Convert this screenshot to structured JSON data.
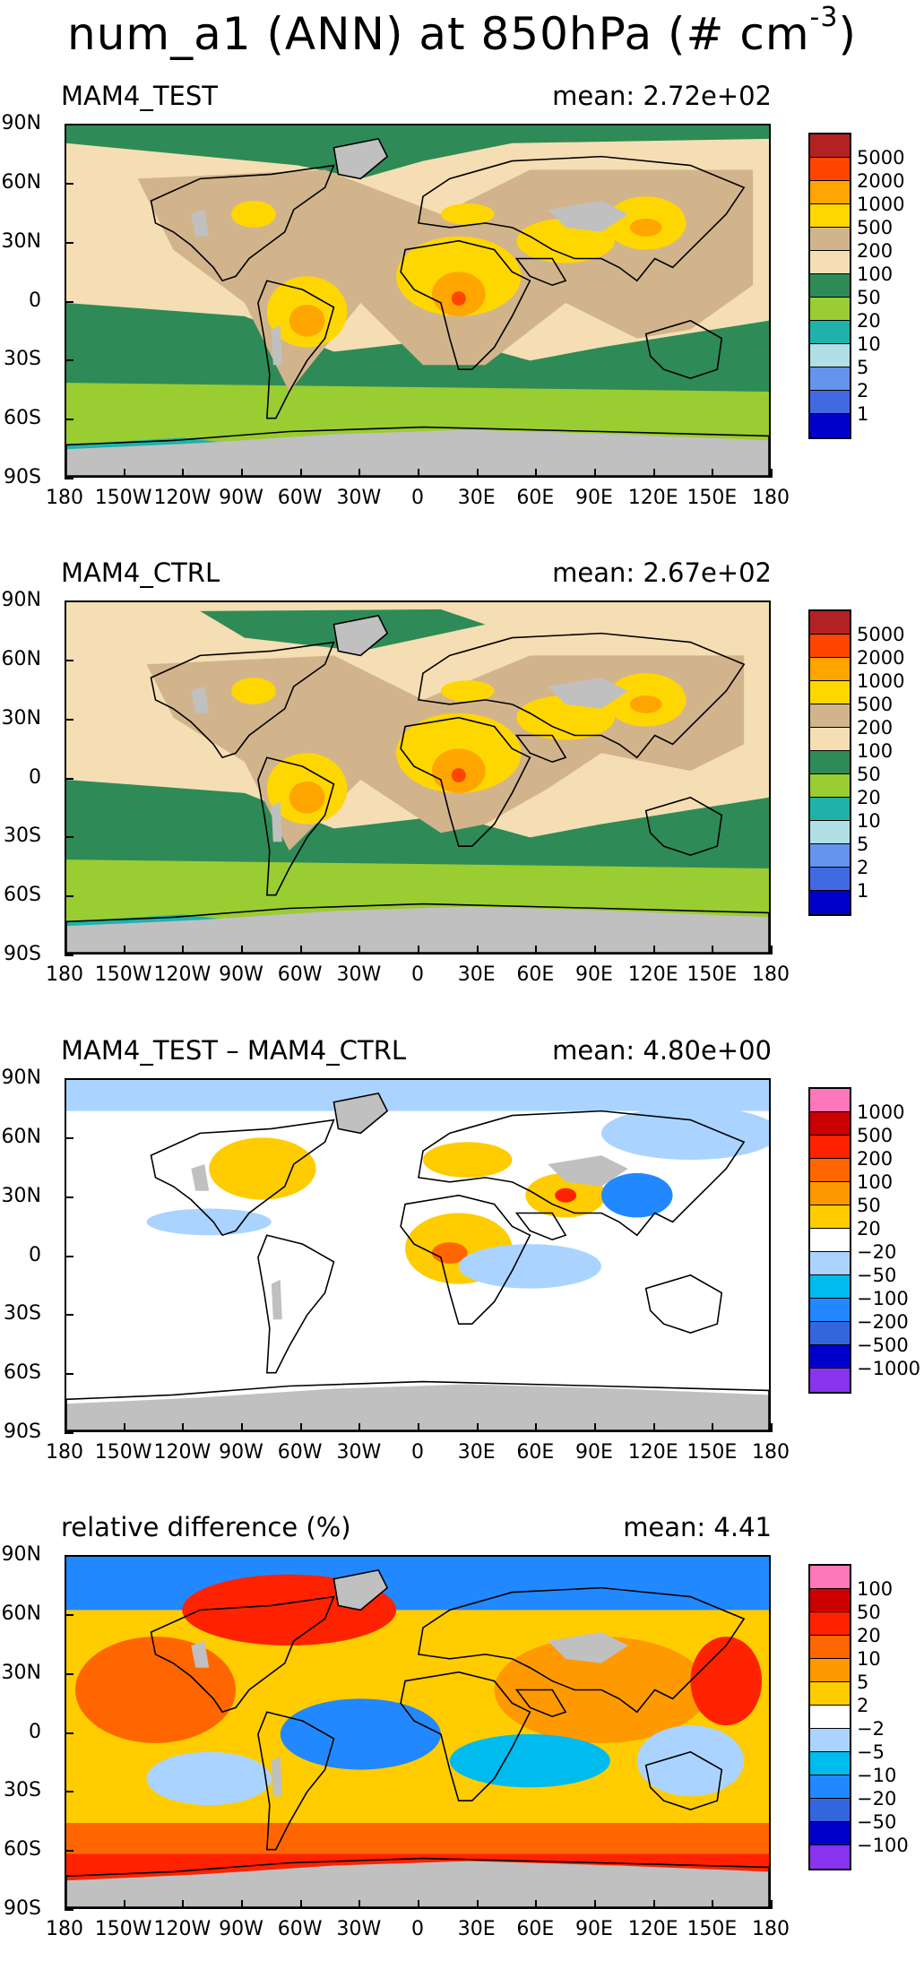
{
  "title": "num_a1 (ANN) at 850hPa (#  cm",
  "title_exponent": "-3",
  "lat_labels": [
    "90N",
    "60N",
    "30N",
    "0",
    "30S",
    "60S",
    "90S"
  ],
  "lon_labels": [
    "180",
    "150W",
    "120W",
    "90W",
    "60W",
    "30W",
    "0",
    "30E",
    "60E",
    "90E",
    "120E",
    "150E",
    "180"
  ],
  "panels": [
    {
      "name": "MAM4_TEST",
      "mean": "mean: 2.72e+02",
      "kind": "abs",
      "levels": [
        "5000",
        "2000",
        "1000",
        "500",
        "200",
        "100",
        "50",
        "20",
        "10",
        "5",
        "2",
        "1"
      ],
      "colors": [
        "#b22222",
        "#ff4500",
        "#ffa500",
        "#ffd700",
        "#d2b48c",
        "#f5deb3",
        "#2e8b57",
        "#9acd32",
        "#20b2aa",
        "#b0e0e6",
        "#6495ed",
        "#4169e1",
        "#0000cd"
      ]
    },
    {
      "name": "MAM4_CTRL",
      "mean": "mean: 2.67e+02",
      "kind": "abs",
      "levels": [
        "5000",
        "2000",
        "1000",
        "500",
        "200",
        "100",
        "50",
        "20",
        "10",
        "5",
        "2",
        "1"
      ],
      "colors": [
        "#b22222",
        "#ff4500",
        "#ffa500",
        "#ffd700",
        "#d2b48c",
        "#f5deb3",
        "#2e8b57",
        "#9acd32",
        "#20b2aa",
        "#b0e0e6",
        "#6495ed",
        "#4169e1",
        "#0000cd"
      ]
    },
    {
      "name": "MAM4_TEST – MAM4_CTRL",
      "mean": "mean: 4.80e+00",
      "kind": "diff",
      "levels": [
        "1000",
        "500",
        "200",
        "100",
        "50",
        "20",
        "−20",
        "−50",
        "−100",
        "−200",
        "−500",
        "−1000"
      ],
      "colors": [
        "#ff77bb",
        "#cc0000",
        "#ff2200",
        "#ff6600",
        "#ff9900",
        "#ffcc00",
        "#ffffff",
        "#aad4ff",
        "#00bbee",
        "#2288ff",
        "#3366dd",
        "#0000cc",
        "#8833ee"
      ]
    },
    {
      "name": "relative difference (%)",
      "mean": "mean:   4.41",
      "kind": "rel",
      "levels": [
        "100",
        "50",
        "20",
        "10",
        "5",
        "2",
        "−2",
        "−5",
        "−10",
        "−20",
        "−50",
        "−100"
      ],
      "colors": [
        "#ff77bb",
        "#cc0000",
        "#ff2200",
        "#ff6600",
        "#ff9900",
        "#ffcc00",
        "#ffffff",
        "#aad4ff",
        "#00bbee",
        "#2288ff",
        "#3366dd",
        "#0000cc",
        "#8833ee"
      ]
    }
  ]
}
